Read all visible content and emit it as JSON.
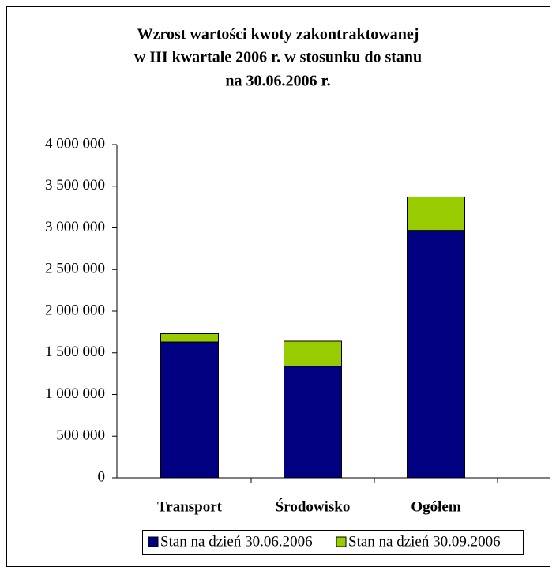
{
  "chart_data": {
    "type": "stacked_bar",
    "title": [
      "Wzrost wartości kwoty zakontraktowanej",
      "w III kwartale 2006 r. w stosunku do stanu",
      "na 30.06.2006 r."
    ],
    "categories": [
      "Transport",
      "Środowisko",
      "Ogółem"
    ],
    "series": [
      {
        "name": "Stan na dzień 30.06.2006",
        "color": "#000080",
        "values": [
          1630000,
          1340000,
          2970000
        ]
      },
      {
        "name": "Stan na dzień 30.09.2006",
        "color": "#99cc00",
        "values": [
          100000,
          300000,
          400000
        ]
      }
    ],
    "ylim": [
      0,
      4000000
    ],
    "yticks": [
      0,
      {
        "value": 500000,
        "label": "500 000"
      },
      {
        "value": 1000000,
        "label": "1 000 000"
      },
      {
        "value": 1500000,
        "label": "1 500 000"
      },
      {
        "value": 2000000,
        "label": "2 000 000"
      },
      {
        "value": 2500000,
        "label": "2 500 000"
      },
      {
        "value": 3000000,
        "label": "3 000 000"
      },
      {
        "value": 3500000,
        "label": "3 500 000"
      },
      {
        "value": 4000000,
        "label": "4 000 000"
      }
    ],
    "legend": "bottom"
  }
}
